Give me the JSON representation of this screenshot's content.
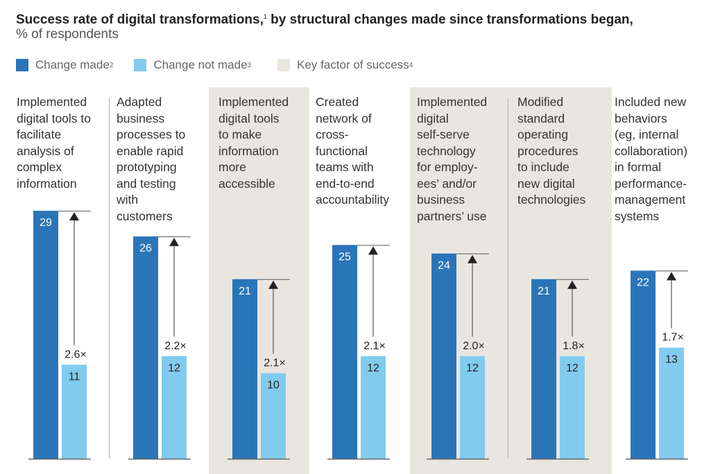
{
  "title": {
    "main": "Success rate of digital transformations,",
    "footnote": "1",
    "rest": " by structural changes made since transformations began,",
    "subtitle": "% of respondents"
  },
  "legend": [
    {
      "label": "Change made",
      "footnote": "2",
      "color": "#2a75b8"
    },
    {
      "label": "Change not made",
      "footnote": "3",
      "color": "#81cbee"
    },
    {
      "label": "Key factor of success",
      "footnote": "4",
      "color": "#e8e6df"
    }
  ],
  "chart_data": {
    "type": "bar",
    "title": "Success rate of digital transformations, by structural changes made since transformations began, % of respondents",
    "xlabel": "",
    "ylabel": "% of respondents",
    "ylim": [
      0,
      29
    ],
    "grid": false,
    "legend_position": "top-left",
    "categories": [
      "Implemented digital tools to facilitate analysis of complex information",
      "Adapted business processes to enable rapid prototyping and testing with customers",
      "Implemented digital tools to make information more accessible",
      "Created network of cross-functional teams with end-to-end accountability",
      "Implemented digital self-serve technology for employees' and/or business partners' use",
      "Modified standard operating procedures to include new digital technologies",
      "Included new behaviors (eg, internal collaboration) in formal performance-management systems"
    ],
    "category_labels_wrapped": [
      "Implemented\ndigital tools to\nfacilitate\nanalysis of\ncomplex\ninformation",
      "Adapted\nbusiness\nprocesses to\nenable rapid\nprototyping\nand testing\nwith\ncustomers",
      "Implemented\ndigital tools\nto make\ninformation\nmore\naccessible",
      "Created\nnetwork of\ncross-\nfunctional\nteams with\nend-to-end\naccountability",
      "Implemented\ndigital\nself-serve\ntechnology\nfor employ-\nees’ and/or\nbusiness\npartners’ use",
      "Modified\nstandard\noperating\nprocedures\nto include\nnew digital\ntechnologies",
      "Included new\nbehaviors\n(eg, internal\ncollaboration)\nin formal\nperformance-\nmanagement\nsystems"
    ],
    "series": [
      {
        "name": "Change made",
        "color": "#2a75b8",
        "values": [
          29,
          26,
          21,
          25,
          24,
          21,
          22
        ]
      },
      {
        "name": "Change not made",
        "color": "#81cbee",
        "values": [
          11,
          12,
          10,
          12,
          12,
          12,
          13
        ]
      }
    ],
    "multipliers": [
      "2.6×",
      "2.2×",
      "2.1×",
      "2.1×",
      "2.0×",
      "1.8×",
      "1.7×"
    ],
    "key_factor_of_success": [
      false,
      false,
      true,
      false,
      true,
      true,
      false
    ]
  }
}
